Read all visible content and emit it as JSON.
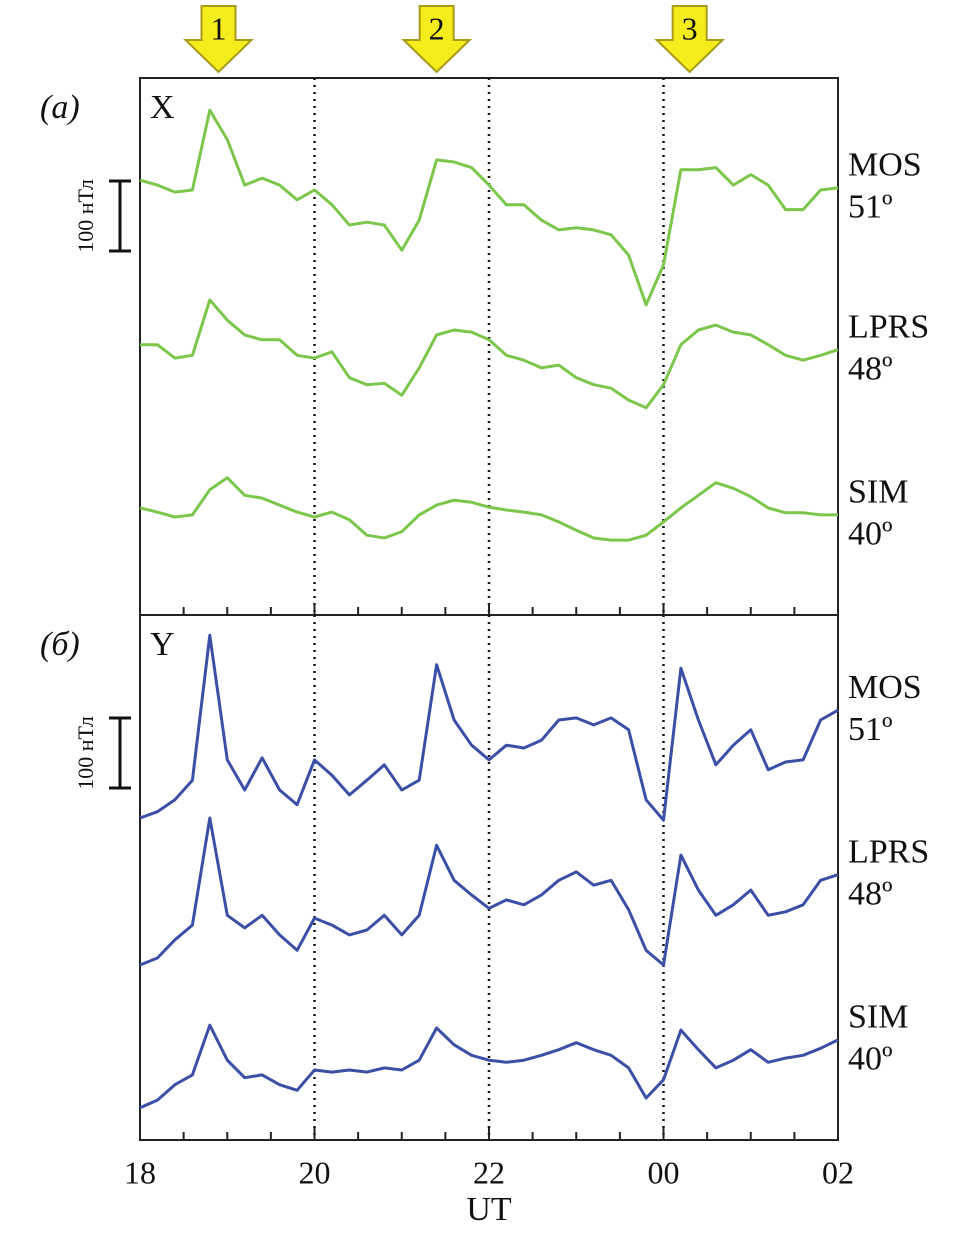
{
  "chart_data": [
    {
      "type": "line",
      "panel_label": "(а)",
      "component": "X",
      "x": [
        18,
        18.2,
        18.4,
        18.6,
        18.8,
        19,
        19.2,
        19.4,
        19.6,
        19.8,
        20,
        20.2,
        20.4,
        20.6,
        20.8,
        21,
        21.2,
        21.4,
        21.6,
        21.8,
        22,
        22.2,
        22.4,
        22.6,
        22.8,
        23,
        23.2,
        23.4,
        23.6,
        23.8,
        24,
        24.2,
        24.4,
        24.6,
        24.8,
        25,
        25.2,
        25.4,
        25.6,
        25.8,
        26
      ],
      "xlim": [
        18,
        26
      ],
      "ylim": [
        0,
        767
      ],
      "xticks": [
        20,
        22,
        24
      ],
      "show_xtick_labels": false,
      "grid": true,
      "minor_xticks": [
        18.5,
        19,
        19.5,
        20.5,
        21,
        21.5,
        22.5,
        23,
        23.5,
        24.5,
        25,
        25.5
      ],
      "scale_bar": {
        "label": "100 нТл",
        "value": 100
      },
      "markers": [
        {
          "label": "1",
          "x": 18.9
        },
        {
          "label": "2",
          "x": 21.4
        },
        {
          "label": "3",
          "x": 24.3
        }
      ],
      "series": [
        {
          "name": "MOS",
          "latitude": "51º",
          "color": "#7cc64c",
          "values": [
            621,
            614,
            604,
            607,
            721,
            679,
            614,
            624,
            614,
            593,
            607,
            586,
            557,
            561,
            557,
            521,
            564,
            650,
            647,
            639,
            614,
            586,
            586,
            564,
            550,
            553,
            550,
            543,
            514,
            443,
            500,
            636,
            636,
            639,
            614,
            629,
            614,
            579,
            579,
            607,
            610
          ]
        },
        {
          "name": "LPRS",
          "latitude": "48º",
          "color": "#7cc64c",
          "values": [
            386,
            386,
            367,
            371,
            450,
            421,
            400,
            393,
            393,
            371,
            367,
            376,
            339,
            329,
            331,
            314,
            353,
            400,
            407,
            404,
            393,
            371,
            364,
            353,
            357,
            339,
            329,
            324,
            307,
            296,
            329,
            386,
            407,
            414,
            404,
            400,
            386,
            371,
            364,
            371,
            379
          ]
        },
        {
          "name": "SIM",
          "latitude": "40º",
          "color": "#7cc64c",
          "values": [
            153,
            147,
            140,
            143,
            179,
            196,
            171,
            167,
            157,
            147,
            140,
            147,
            136,
            114,
            110,
            119,
            143,
            157,
            164,
            161,
            154,
            150,
            147,
            143,
            133,
            121,
            110,
            107,
            107,
            114,
            133,
            153,
            171,
            189,
            181,
            169,
            153,
            146,
            146,
            143,
            143
          ]
        }
      ]
    },
    {
      "type": "line",
      "panel_label": "(б)",
      "component": "Y",
      "x": [
        18,
        18.2,
        18.4,
        18.6,
        18.8,
        19,
        19.2,
        19.4,
        19.6,
        19.8,
        20,
        20.2,
        20.4,
        20.6,
        20.8,
        21,
        21.2,
        21.4,
        21.6,
        21.8,
        22,
        22.2,
        22.4,
        22.6,
        22.8,
        23,
        23.2,
        23.4,
        23.6,
        23.8,
        24,
        24.2,
        24.4,
        24.6,
        24.8,
        25,
        25.2,
        25.4,
        25.6,
        25.8,
        26
      ],
      "xlim": [
        18,
        26
      ],
      "ylim": [
        0,
        750
      ],
      "xticks": [
        18,
        20,
        22,
        {
          "value": 24,
          "label": "00"
        },
        {
          "value": 26,
          "label": "02"
        }
      ],
      "show_xtick_labels": true,
      "grid": true,
      "minor_xticks": [
        18.5,
        19,
        19.5,
        20.5,
        21,
        21.5,
        22.5,
        23,
        23.5,
        24.5,
        25,
        25.5
      ],
      "x_title": "UT",
      "scale_bar": {
        "label": "100 нТл",
        "value": 100
      },
      "series": [
        {
          "name": "MOS",
          "latitude": "51º",
          "color": "#3b4fa6",
          "values": [
            460,
            469,
            486,
            514,
            721,
            543,
            500,
            546,
            500,
            479,
            543,
            521,
            493,
            514,
            536,
            500,
            514,
            679,
            600,
            564,
            543,
            564,
            560,
            571,
            600,
            603,
            593,
            603,
            586,
            486,
            457,
            674,
            600,
            536,
            564,
            586,
            529,
            540,
            543,
            600,
            614
          ]
        },
        {
          "name": "LPRS",
          "latitude": "48º",
          "color": "#3b4fa6",
          "values": [
            250,
            260,
            286,
            307,
            460,
            321,
            303,
            321,
            293,
            271,
            317,
            307,
            293,
            300,
            321,
            293,
            321,
            421,
            371,
            350,
            331,
            343,
            336,
            350,
            371,
            383,
            364,
            371,
            329,
            271,
            250,
            407,
            357,
            321,
            336,
            357,
            321,
            326,
            336,
            371,
            379
          ]
        },
        {
          "name": "SIM",
          "latitude": "40º",
          "color": "#3b4fa6",
          "values": [
            46,
            57,
            79,
            93,
            164,
            114,
            89,
            93,
            79,
            71,
            100,
            97,
            100,
            97,
            103,
            100,
            114,
            160,
            136,
            121,
            114,
            111,
            114,
            121,
            129,
            139,
            129,
            121,
            103,
            60,
            86,
            157,
            129,
            103,
            114,
            129,
            111,
            117,
            121,
            131,
            143
          ]
        }
      ]
    }
  ]
}
